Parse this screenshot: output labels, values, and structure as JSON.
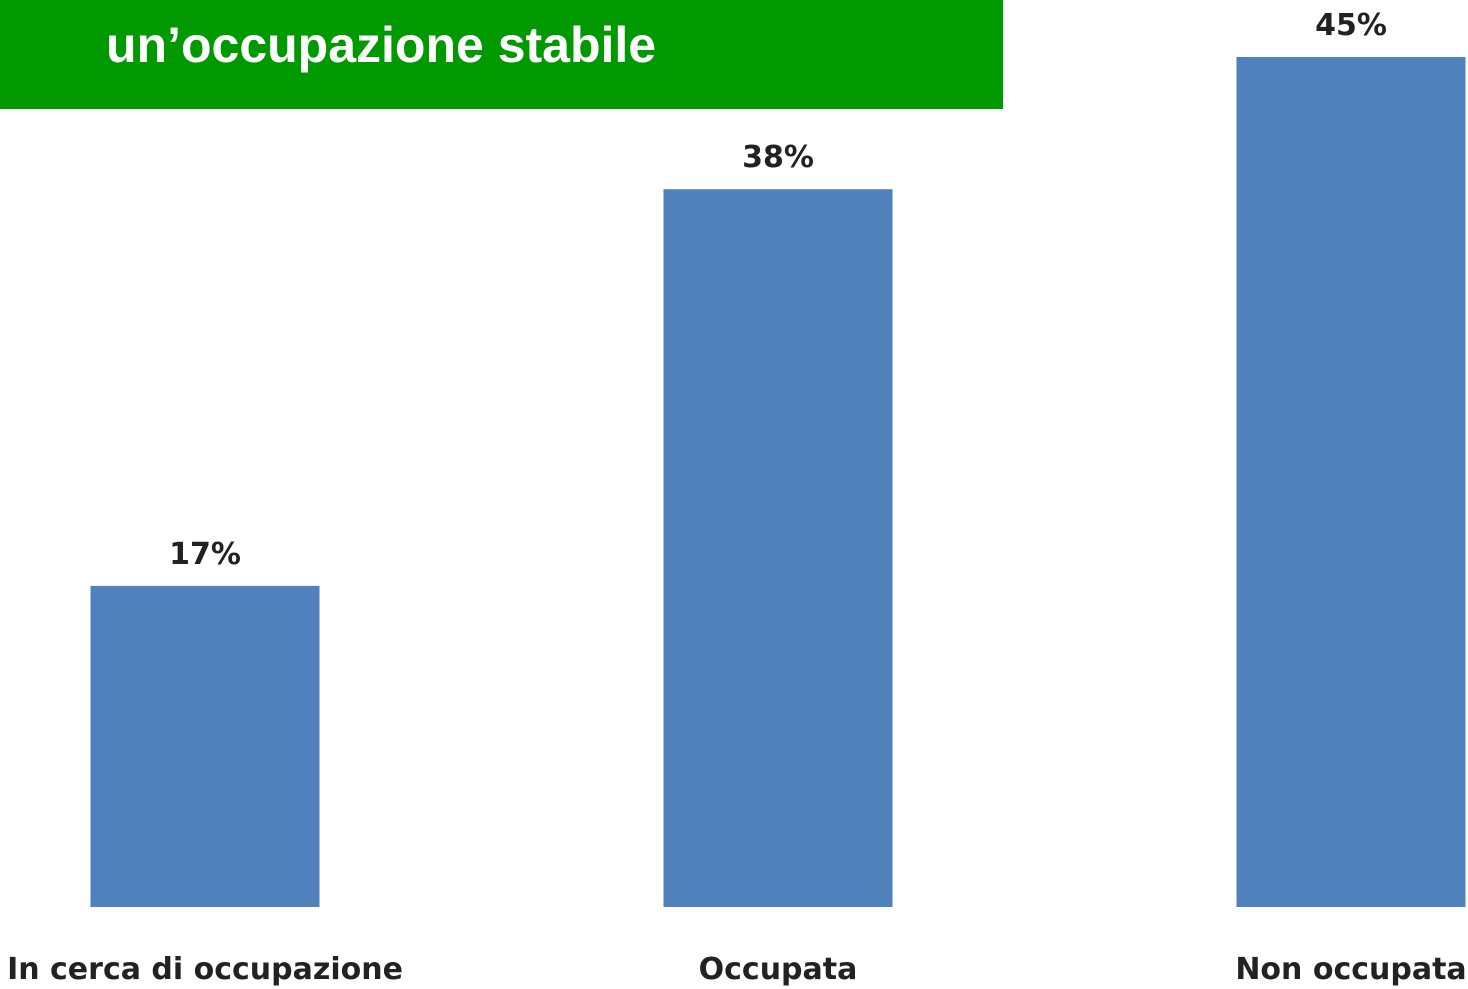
{
  "chart_data": {
    "type": "bar",
    "title": "un’occupazione stabile",
    "categories": [
      "In cerca di occupazione",
      "Occupata",
      "Non occupata"
    ],
    "values": [
      17,
      38,
      45
    ],
    "value_labels": [
      "17%",
      "38%",
      "45%"
    ],
    "color": "#4f81bd"
  }
}
